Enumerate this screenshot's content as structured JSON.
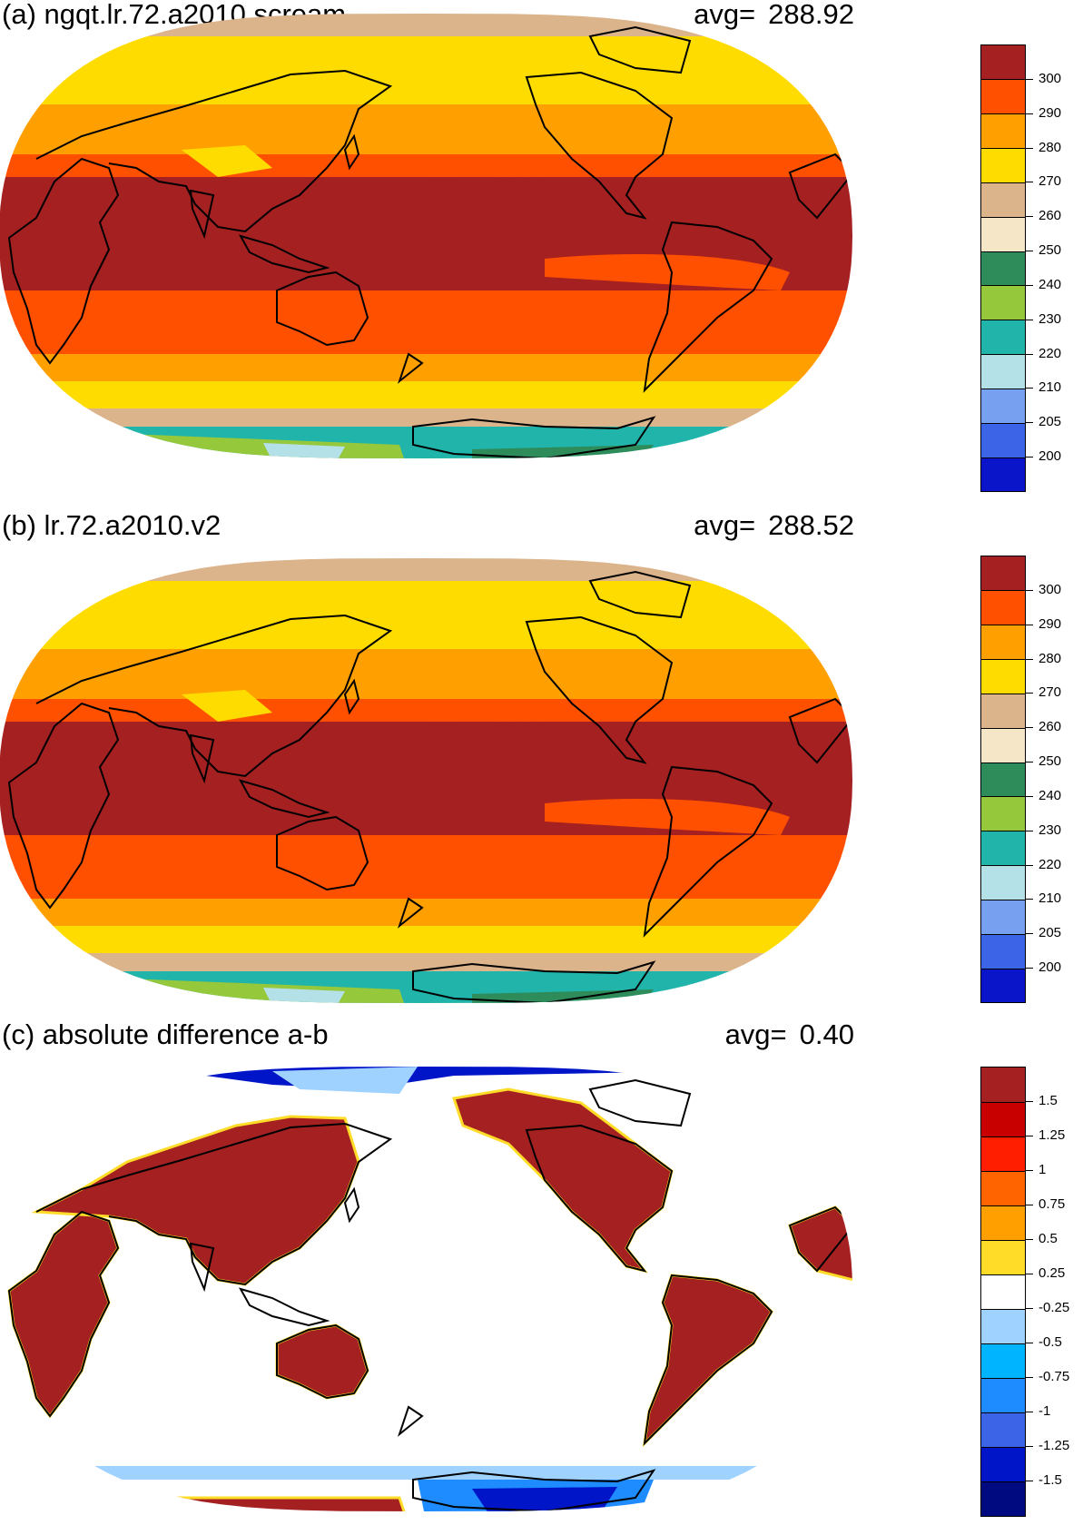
{
  "panels": [
    {
      "title": "(a) ngqt.lr.72.a2010.scream",
      "avg_label": "avg=",
      "avg_value": "288.92"
    },
    {
      "title": "(b) lr.72.a2010.v2",
      "avg_label": "avg=",
      "avg_value": "288.52"
    },
    {
      "title": "(c) absolute difference a-b",
      "avg_label": "avg=",
      "avg_value": "0.40"
    }
  ],
  "chart_data": [
    {
      "type": "heatmap",
      "title": "(a) ngqt.lr.72.a2010.scream",
      "projection": "Robinson, centered on Pacific",
      "annotation": "avg= 288.92",
      "colorbar": {
        "ticks": [
          "200",
          "205",
          "210",
          "220",
          "230",
          "240",
          "250",
          "260",
          "270",
          "280",
          "290",
          "300"
        ],
        "colors": [
          "#0a14c8",
          "#3c64e6",
          "#78a0f0",
          "#b4e0e8",
          "#20b4aa",
          "#96c83c",
          "#2e8c5a",
          "#f5e6c8",
          "#dcb48c",
          "#ffdc00",
          "#ffa000",
          "#ff5000",
          "#a52020"
        ]
      },
      "zones": [
        {
          "lat_range": [
            -20,
            20
          ],
          "value": "300+"
        },
        {
          "lat_range": [
            20,
            35
          ],
          "value": "290-300"
        },
        {
          "lat_range": [
            35,
            45
          ],
          "value": "280-290"
        },
        {
          "lat_range": [
            45,
            60
          ],
          "value": "270-280"
        },
        {
          "lat_range": [
            60,
            75
          ],
          "value": "260-270"
        },
        {
          "lat_range": [
            -75,
            -60
          ],
          "value": "220-250 (Antarctica)"
        }
      ]
    },
    {
      "type": "heatmap",
      "title": "(b) lr.72.a2010.v2",
      "projection": "Robinson, centered on Pacific",
      "annotation": "avg= 288.52",
      "colorbar": {
        "ticks": [
          "200",
          "205",
          "210",
          "220",
          "230",
          "240",
          "250",
          "260",
          "270",
          "280",
          "290",
          "300"
        ],
        "colors": [
          "#0a14c8",
          "#3c64e6",
          "#78a0f0",
          "#b4e0e8",
          "#20b4aa",
          "#96c83c",
          "#2e8c5a",
          "#f5e6c8",
          "#dcb48c",
          "#ffdc00",
          "#ffa000",
          "#ff5000",
          "#a52020"
        ]
      }
    },
    {
      "type": "heatmap",
      "title": "(c) absolute difference a-b",
      "projection": "Robinson, centered on Pacific",
      "annotation": "avg= 0.40",
      "colorbar": {
        "ticks": [
          "-1.5",
          "-1.25",
          "-1",
          "-0.75",
          "-0.5",
          "-0.25",
          "0.25",
          "0.5",
          "0.75",
          "1",
          "1.25",
          "1.5"
        ],
        "colors": [
          "#000a80",
          "#0014c8",
          "#3c64e6",
          "#1e8cff",
          "#00b4ff",
          "#a0d2ff",
          "#ffffff",
          "#ffdc28",
          "#ffa000",
          "#ff6400",
          "#ff1e00",
          "#c80000",
          "#a52020"
        ]
      }
    }
  ]
}
